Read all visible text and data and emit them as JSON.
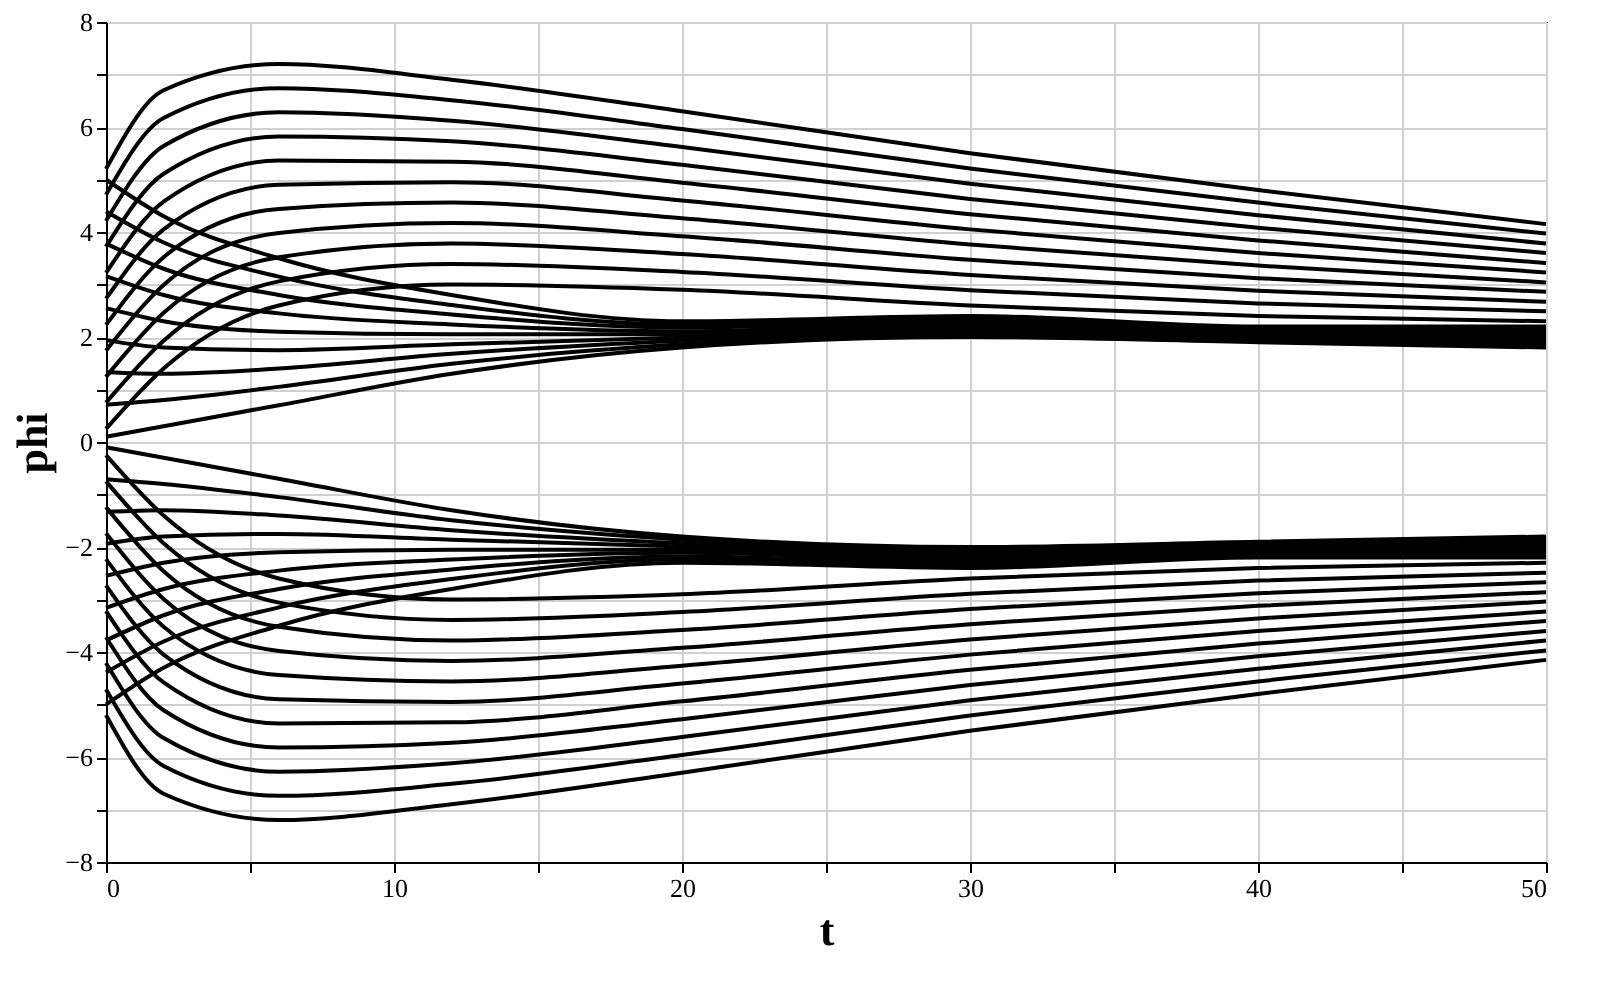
{
  "chart_data": {
    "type": "line",
    "xlabel": "t",
    "ylabel": "phi",
    "x": [
      0,
      2,
      6,
      12,
      20,
      30,
      40,
      50
    ],
    "xlim": [
      0,
      50
    ],
    "ylim": [
      -8,
      8
    ],
    "xticks": [
      0,
      {
        "value": 5,
        "label": null
      },
      10,
      {
        "value": 15,
        "label": null
      },
      20,
      {
        "value": 25,
        "label": null
      },
      30,
      {
        "value": 35,
        "label": null
      },
      40,
      {
        "value": 45,
        "label": null
      },
      50
    ],
    "yticks": [
      -8,
      {
        "value": -7,
        "label": null
      },
      -6,
      {
        "value": -5,
        "label": null
      },
      -4,
      {
        "value": -3,
        "label": null
      },
      -2,
      {
        "value": -1,
        "label": null
      },
      0,
      {
        "value": 1,
        "label": null
      },
      2,
      {
        "value": 3,
        "label": null
      },
      4,
      {
        "value": 5,
        "label": null
      },
      6,
      {
        "value": 7,
        "label": null
      },
      8
    ],
    "grid": true,
    "series": [
      {
        "color": "#000000",
        "values": [
          5.2,
          6.7,
          7.2,
          6.9,
          6.3,
          5.5,
          4.8,
          4.15
        ]
      },
      {
        "color": "#000000",
        "values": [
          4.71,
          6.17,
          6.74,
          6.51,
          5.96,
          5.21,
          4.56,
          3.97
        ]
      },
      {
        "color": "#000000",
        "values": [
          4.21,
          5.64,
          6.28,
          6.12,
          5.62,
          4.92,
          4.32,
          3.78
        ]
      },
      {
        "color": "#000000",
        "values": [
          3.72,
          5.11,
          5.82,
          5.73,
          5.28,
          4.63,
          4.08,
          3.6
        ]
      },
      {
        "color": "#000000",
        "values": [
          3.22,
          4.58,
          5.36,
          5.34,
          4.94,
          4.34,
          3.84,
          3.41
        ]
      },
      {
        "color": "#000000",
        "values": [
          2.73,
          4.05,
          4.9,
          4.95,
          4.6,
          4.05,
          3.6,
          3.23
        ]
      },
      {
        "color": "#000000",
        "values": [
          2.23,
          3.52,
          4.44,
          4.56,
          4.26,
          3.76,
          3.36,
          3.04
        ]
      },
      {
        "color": "#000000",
        "values": [
          1.74,
          2.99,
          3.98,
          4.17,
          3.92,
          3.47,
          3.12,
          2.86
        ]
      },
      {
        "color": "#000000",
        "values": [
          1.24,
          2.46,
          3.52,
          3.78,
          3.58,
          3.18,
          2.88,
          2.67
        ]
      },
      {
        "color": "#000000",
        "values": [
          0.75,
          1.93,
          3.06,
          3.39,
          3.24,
          2.89,
          2.64,
          2.49
        ]
      },
      {
        "color": "#000000",
        "values": [
          0.25,
          1.4,
          2.6,
          3.0,
          2.9,
          2.6,
          2.4,
          2.3
        ]
      },
      {
        "color": "#000000",
        "values": [
          5.0,
          4.3,
          3.5,
          2.8,
          2.3,
          2.4,
          2.2,
          2.2
        ]
      },
      {
        "color": "#000000",
        "values": [
          4.39,
          3.8,
          3.15,
          2.61,
          2.24,
          2.35,
          2.16,
          2.15
        ]
      },
      {
        "color": "#000000",
        "values": [
          3.78,
          3.3,
          2.8,
          2.43,
          2.18,
          2.3,
          2.13,
          2.1
        ]
      },
      {
        "color": "#000000",
        "values": [
          3.16,
          2.8,
          2.45,
          2.24,
          2.11,
          2.25,
          2.09,
          2.05
        ]
      },
      {
        "color": "#000000",
        "values": [
          2.55,
          2.3,
          2.1,
          2.05,
          2.05,
          2.2,
          2.05,
          2.0
        ]
      },
      {
        "color": "#000000",
        "values": [
          1.94,
          1.8,
          1.75,
          1.86,
          1.99,
          2.15,
          2.01,
          1.95
        ]
      },
      {
        "color": "#000000",
        "values": [
          1.33,
          1.3,
          1.4,
          1.68,
          1.93,
          2.1,
          1.98,
          1.9
        ]
      },
      {
        "color": "#000000",
        "values": [
          0.71,
          0.8,
          1.05,
          1.49,
          1.86,
          2.05,
          1.94,
          1.85
        ]
      },
      {
        "color": "#000000",
        "values": [
          0.1,
          0.3,
          0.7,
          1.3,
          1.8,
          2.0,
          1.9,
          1.8
        ]
      },
      {
        "color": "#000000",
        "values": [
          -5.2,
          -6.7,
          -7.2,
          -6.9,
          -6.3,
          -5.5,
          -4.8,
          -4.15
        ]
      },
      {
        "color": "#000000",
        "values": [
          -4.71,
          -6.17,
          -6.74,
          -6.51,
          -5.96,
          -5.21,
          -4.56,
          -3.97
        ]
      },
      {
        "color": "#000000",
        "values": [
          -4.21,
          -5.64,
          -6.28,
          -6.12,
          -5.62,
          -4.92,
          -4.32,
          -3.78
        ]
      },
      {
        "color": "#000000",
        "values": [
          -3.72,
          -5.11,
          -5.82,
          -5.73,
          -5.28,
          -4.63,
          -4.08,
          -3.6
        ]
      },
      {
        "color": "#000000",
        "values": [
          -3.22,
          -4.58,
          -5.36,
          -5.34,
          -4.94,
          -4.34,
          -3.84,
          -3.41
        ]
      },
      {
        "color": "#000000",
        "values": [
          -2.73,
          -4.05,
          -4.9,
          -4.95,
          -4.6,
          -4.05,
          -3.6,
          -3.23
        ]
      },
      {
        "color": "#000000",
        "values": [
          -2.23,
          -3.52,
          -4.44,
          -4.56,
          -4.26,
          -3.76,
          -3.36,
          -3.04
        ]
      },
      {
        "color": "#000000",
        "values": [
          -1.74,
          -2.99,
          -3.98,
          -4.17,
          -3.92,
          -3.47,
          -3.12,
          -2.86
        ]
      },
      {
        "color": "#000000",
        "values": [
          -1.24,
          -2.46,
          -3.52,
          -3.78,
          -3.58,
          -3.18,
          -2.88,
          -2.67
        ]
      },
      {
        "color": "#000000",
        "values": [
          -0.75,
          -1.93,
          -3.06,
          -3.39,
          -3.24,
          -2.89,
          -2.64,
          -2.49
        ]
      },
      {
        "color": "#000000",
        "values": [
          -0.25,
          -1.4,
          -2.6,
          -3.0,
          -2.9,
          -2.6,
          -2.4,
          -2.3
        ]
      },
      {
        "color": "#000000",
        "values": [
          -5.0,
          -4.3,
          -3.5,
          -2.8,
          -2.3,
          -2.4,
          -2.2,
          -2.2
        ]
      },
      {
        "color": "#000000",
        "values": [
          -4.39,
          -3.8,
          -3.15,
          -2.61,
          -2.24,
          -2.35,
          -2.16,
          -2.15
        ]
      },
      {
        "color": "#000000",
        "values": [
          -3.78,
          -3.3,
          -2.8,
          -2.43,
          -2.18,
          -2.3,
          -2.13,
          -2.1
        ]
      },
      {
        "color": "#000000",
        "values": [
          -3.16,
          -2.8,
          -2.45,
          -2.24,
          -2.11,
          -2.25,
          -2.09,
          -2.05
        ]
      },
      {
        "color": "#000000",
        "values": [
          -2.55,
          -2.3,
          -2.1,
          -2.05,
          -2.05,
          -2.2,
          -2.05,
          -2.0
        ]
      },
      {
        "color": "#000000",
        "values": [
          -1.94,
          -1.8,
          -1.75,
          -1.86,
          -1.99,
          -2.15,
          -2.01,
          -1.95
        ]
      },
      {
        "color": "#000000",
        "values": [
          -1.33,
          -1.3,
          -1.4,
          -1.68,
          -1.93,
          -2.1,
          -1.98,
          -1.9
        ]
      },
      {
        "color": "#000000",
        "values": [
          -0.71,
          -0.8,
          -1.05,
          -1.49,
          -1.86,
          -2.05,
          -1.94,
          -1.85
        ]
      },
      {
        "color": "#000000",
        "values": [
          -0.1,
          -0.3,
          -0.7,
          -1.3,
          -1.8,
          -2.0,
          -1.9,
          -1.8
        ]
      }
    ]
  }
}
